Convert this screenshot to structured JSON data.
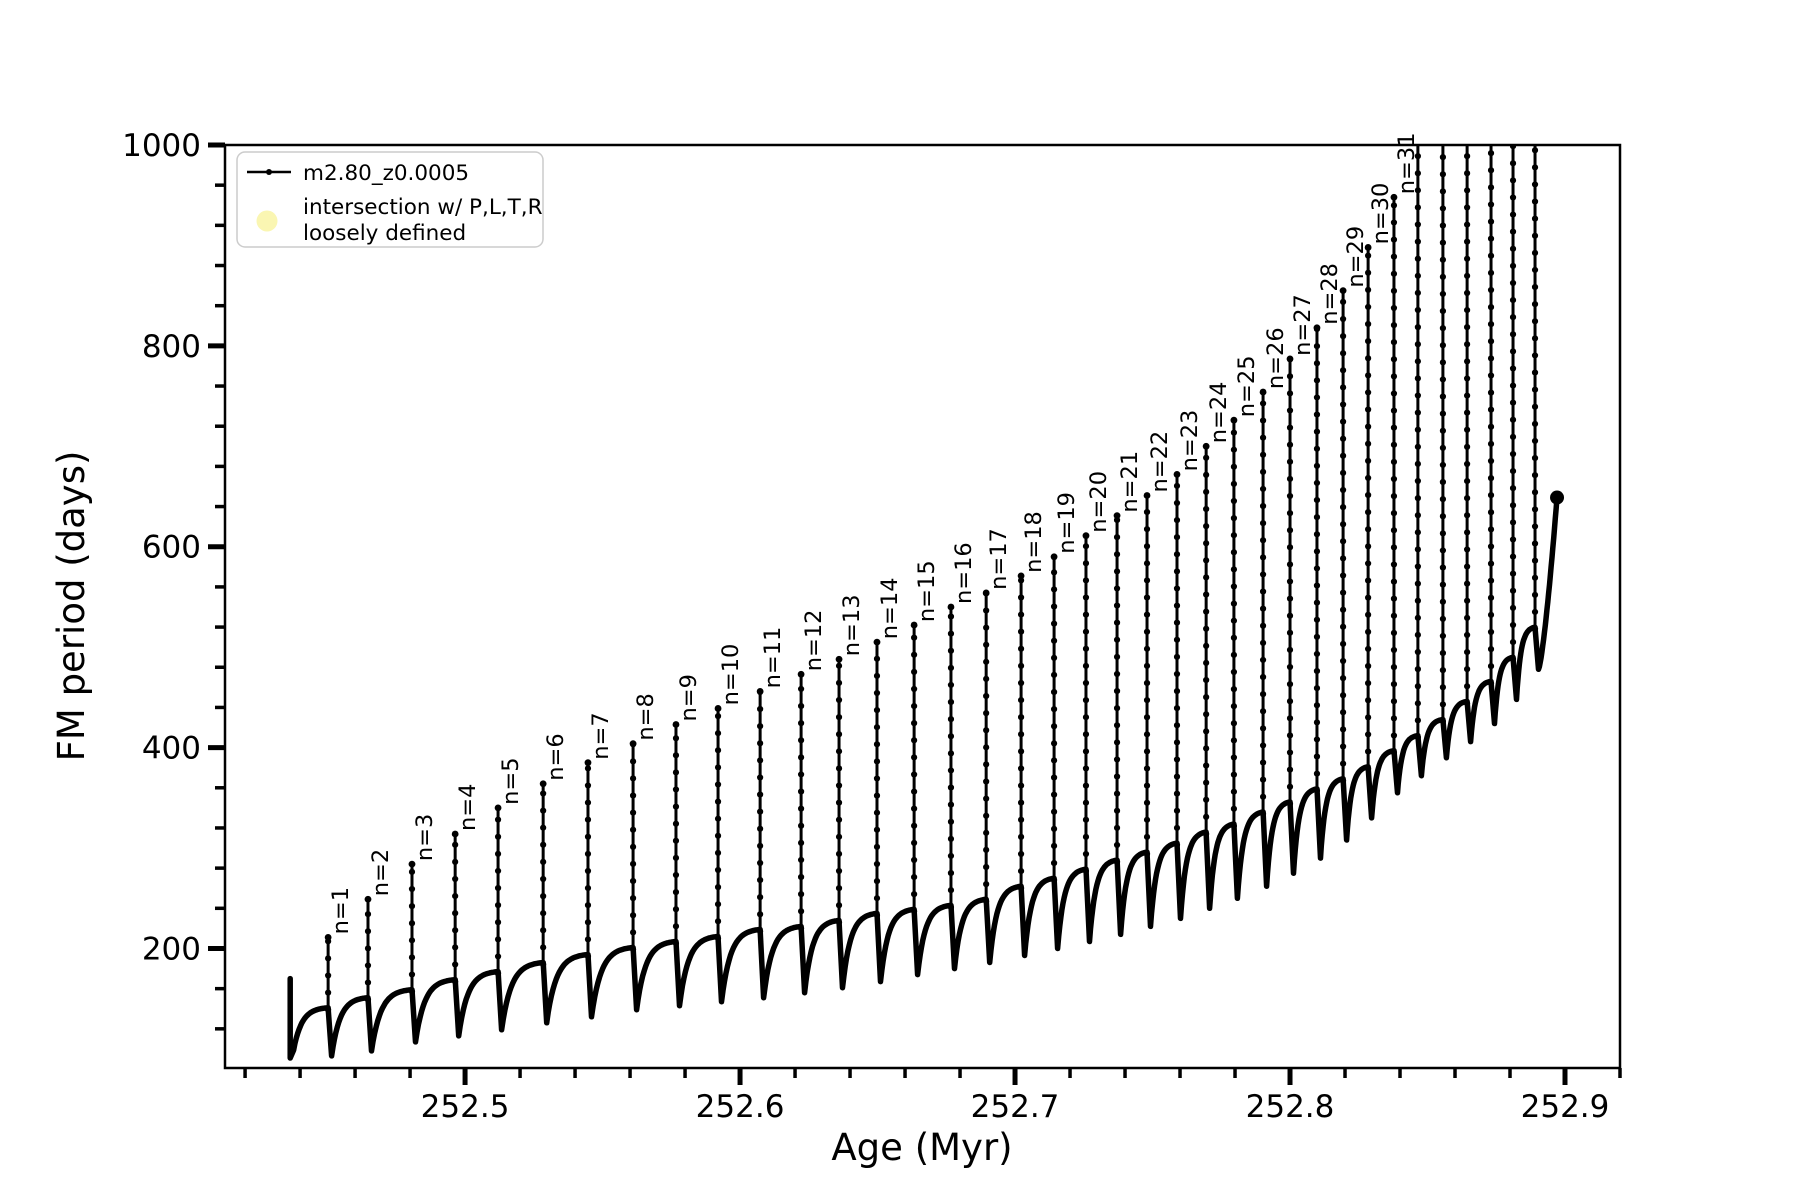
{
  "chart_data": {
    "type": "line",
    "title": "",
    "xlabel": "Age (Myr)",
    "ylabel": "FM period (days)",
    "xlim": [
      252.4127,
      252.92
    ],
    "ylim": [
      81,
      1000
    ],
    "grid": false,
    "x_major_ticks": [
      252.5,
      252.6,
      252.7,
      252.8,
      252.9
    ],
    "x_major_labels": [
      "252.5",
      "252.6",
      "252.7",
      "252.8",
      "252.9"
    ],
    "x_minor_step": 0.02,
    "y_major_ticks": [
      200,
      400,
      600,
      800,
      1000
    ],
    "y_major_labels": [
      "200",
      "400",
      "600",
      "800",
      "1000"
    ],
    "y_minor_step": 40,
    "legend": {
      "position": "upper-left",
      "entries": [
        {
          "type": "line-with-dot-marker",
          "color": "#000000",
          "label": "m2.80_z0.0005"
        },
        {
          "type": "round-marker",
          "color": "#faf6ae",
          "label": "intersection w/ P,L,T,R loosely defined",
          "label_lines": [
            "intersection w/ P,L,T,R",
            "loosely defined"
          ]
        }
      ]
    },
    "series": [
      {
        "name": "m2.80_z0.0005",
        "color": "#000000",
        "start": {
          "age": 252.4364,
          "value": 170,
          "dip": 91
        },
        "end": {
          "age": 252.8971,
          "value": 649
        },
        "events": [
          {
            "label": "n=1",
            "age": 252.4502,
            "peak": 211,
            "plateau": 141,
            "dip": 93,
            "clipped": false
          },
          {
            "label": "n=2",
            "age": 252.4647,
            "peak": 249,
            "plateau": 151,
            "dip": 98,
            "clipped": false
          },
          {
            "label": "n=3",
            "age": 252.4807,
            "peak": 284,
            "plateau": 159,
            "dip": 107,
            "clipped": false
          },
          {
            "label": "n=4",
            "age": 252.4964,
            "peak": 314,
            "plateau": 169,
            "dip": 113,
            "clipped": false
          },
          {
            "label": "n=5",
            "age": 252.512,
            "peak": 340,
            "plateau": 177,
            "dip": 119,
            "clipped": false
          },
          {
            "label": "n=6",
            "age": 252.5284,
            "peak": 364,
            "plateau": 186,
            "dip": 126,
            "clipped": false
          },
          {
            "label": "n=7",
            "age": 252.5447,
            "peak": 385,
            "plateau": 194,
            "dip": 132,
            "clipped": false
          },
          {
            "label": "n=8",
            "age": 252.5611,
            "peak": 404,
            "plateau": 201,
            "dip": 139,
            "clipped": false
          },
          {
            "label": "n=9",
            "age": 252.5767,
            "peak": 423,
            "plateau": 207,
            "dip": 143,
            "clipped": false
          },
          {
            "label": "n=10",
            "age": 252.592,
            "peak": 439,
            "plateau": 212,
            "dip": 147,
            "clipped": false
          },
          {
            "label": "n=11",
            "age": 252.6073,
            "peak": 456,
            "plateau": 219,
            "dip": 151,
            "clipped": false
          },
          {
            "label": "n=12",
            "age": 252.6222,
            "peak": 473,
            "plateau": 222,
            "dip": 156,
            "clipped": false
          },
          {
            "label": "n=13",
            "age": 252.636,
            "peak": 488,
            "plateau": 228,
            "dip": 161,
            "clipped": false
          },
          {
            "label": "n=14",
            "age": 252.6498,
            "peak": 505,
            "plateau": 235,
            "dip": 167,
            "clipped": false
          },
          {
            "label": "n=15",
            "age": 252.6633,
            "peak": 522,
            "plateau": 239,
            "dip": 174,
            "clipped": false
          },
          {
            "label": "n=16",
            "age": 252.6767,
            "peak": 540,
            "plateau": 243,
            "dip": 180,
            "clipped": false
          },
          {
            "label": "n=17",
            "age": 252.6895,
            "peak": 554,
            "plateau": 249,
            "dip": 186,
            "clipped": false
          },
          {
            "label": "n=18",
            "age": 252.7022,
            "peak": 571,
            "plateau": 262,
            "dip": 193,
            "clipped": false
          },
          {
            "label": "n=19",
            "age": 252.7142,
            "peak": 590,
            "plateau": 270,
            "dip": 200,
            "clipped": false
          },
          {
            "label": "n=20",
            "age": 252.7258,
            "peak": 611,
            "plateau": 279,
            "dip": 207,
            "clipped": false
          },
          {
            "label": "n=21",
            "age": 252.7371,
            "peak": 631,
            "plateau": 288,
            "dip": 214,
            "clipped": false
          },
          {
            "label": "n=22",
            "age": 252.748,
            "peak": 651,
            "plateau": 296,
            "dip": 222,
            "clipped": false
          },
          {
            "label": "n=23",
            "age": 252.7589,
            "peak": 672,
            "plateau": 305,
            "dip": 230,
            "clipped": false
          },
          {
            "label": "n=24",
            "age": 252.7695,
            "peak": 700,
            "plateau": 316,
            "dip": 240,
            "clipped": false
          },
          {
            "label": "n=25",
            "age": 252.7796,
            "peak": 726,
            "plateau": 324,
            "dip": 250,
            "clipped": false
          },
          {
            "label": "n=26",
            "age": 252.7902,
            "peak": 754,
            "plateau": 336,
            "dip": 262,
            "clipped": false
          },
          {
            "label": "n=27",
            "age": 252.8,
            "peak": 787,
            "plateau": 346,
            "dip": 275,
            "clipped": false
          },
          {
            "label": "n=28",
            "age": 252.8098,
            "peak": 818,
            "plateau": 359,
            "dip": 290,
            "clipped": false
          },
          {
            "label": "n=29",
            "age": 252.8193,
            "peak": 855,
            "plateau": 369,
            "dip": 308,
            "clipped": false
          },
          {
            "label": "n=30",
            "age": 252.8284,
            "peak": 898,
            "plateau": 381,
            "dip": 330,
            "clipped": false
          },
          {
            "label": "n=31",
            "age": 252.8378,
            "peak": 948,
            "plateau": 397,
            "dip": 355,
            "clipped": false
          },
          {
            "label": null,
            "age": 252.8465,
            "peak": 1020,
            "plateau": 412,
            "dip": 372,
            "clipped": true
          },
          {
            "label": null,
            "age": 252.8556,
            "peak": 1020,
            "plateau": 428,
            "dip": 390,
            "clipped": true
          },
          {
            "label": null,
            "age": 252.8644,
            "peak": 1020,
            "plateau": 446,
            "dip": 406,
            "clipped": true
          },
          {
            "label": null,
            "age": 252.8731,
            "peak": 1020,
            "plateau": 466,
            "dip": 424,
            "clipped": true
          },
          {
            "label": null,
            "age": 252.8811,
            "peak": 1020,
            "plateau": 490,
            "dip": 448,
            "clipped": true
          },
          {
            "label": null,
            "age": 252.8891,
            "peak": 1020,
            "plateau": 520,
            "dip": 478,
            "clipped": true
          }
        ]
      }
    ]
  }
}
